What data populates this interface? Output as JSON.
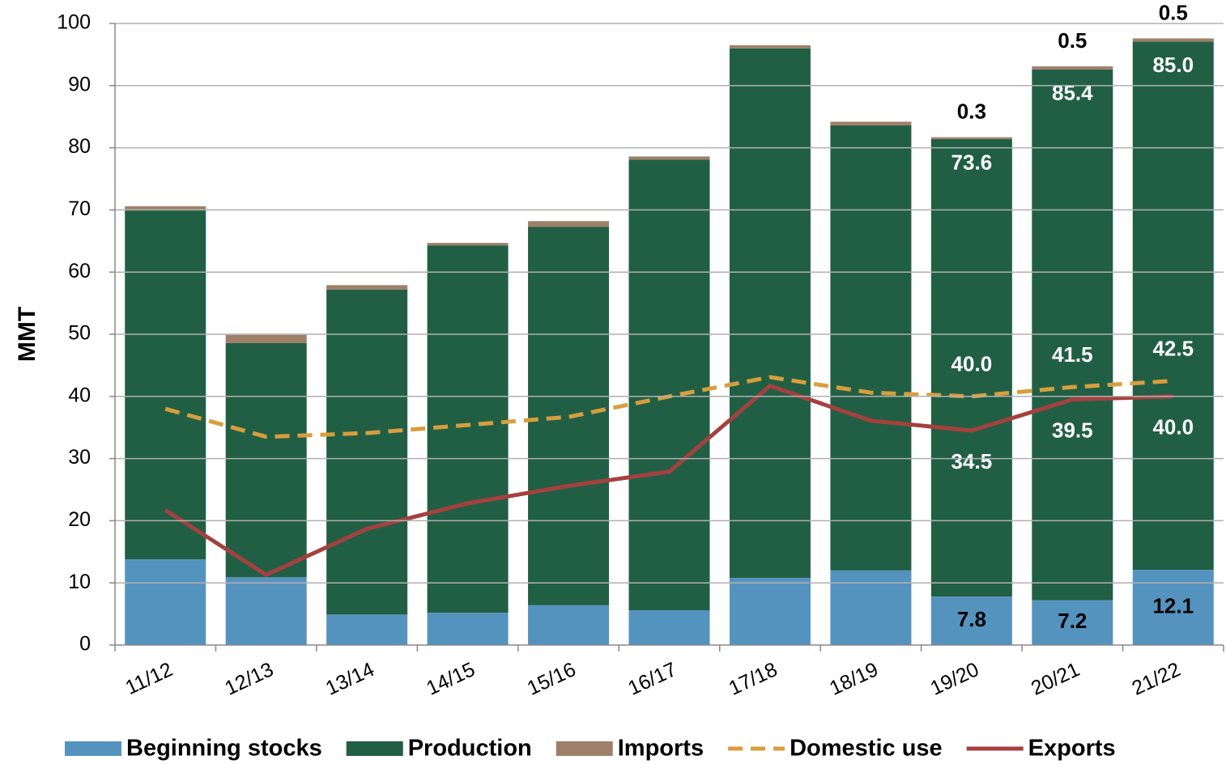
{
  "chart_data": {
    "type": "bar",
    "stacked": true,
    "ylabel": "MMT",
    "categories": [
      "11/12",
      "12/13",
      "13/14",
      "14/15",
      "15/16",
      "16/17",
      "17/18",
      "18/19",
      "19/20",
      "20/21",
      "21/22"
    ],
    "ylim": [
      0,
      100
    ],
    "yticks": [
      0,
      10,
      20,
      30,
      40,
      50,
      60,
      70,
      80,
      90,
      100
    ],
    "grid": true,
    "legend": "bottom",
    "series": [
      {
        "name": "Beginning stocks",
        "type": "bar",
        "color": "#5593bf",
        "label_color": "#000000",
        "values": [
          13.8,
          10.9,
          4.9,
          5.2,
          6.4,
          5.6,
          10.8,
          12.0,
          7.8,
          7.2,
          12.1
        ],
        "value_labels": [
          null,
          null,
          null,
          null,
          null,
          null,
          null,
          null,
          "7.8",
          "7.2",
          "12.1"
        ]
      },
      {
        "name": "Production",
        "type": "bar",
        "color": "#215f45",
        "label_color": "#ffffff",
        "values": [
          56.2,
          37.7,
          52.3,
          59.1,
          60.9,
          72.5,
          85.2,
          71.6,
          73.6,
          85.4,
          85.0
        ],
        "value_labels": [
          null,
          null,
          null,
          null,
          null,
          null,
          null,
          null,
          "73.6",
          "85.4",
          "85.0"
        ]
      },
      {
        "name": "Imports",
        "type": "bar",
        "color": "#a07f6a",
        "label_color": "#000000",
        "values": [
          0.6,
          1.3,
          0.7,
          0.4,
          0.9,
          0.5,
          0.5,
          0.6,
          0.3,
          0.5,
          0.5
        ],
        "value_labels": [
          null,
          null,
          null,
          null,
          null,
          null,
          null,
          null,
          "0.3",
          "0.5",
          "0.5"
        ]
      },
      {
        "name": "Domestic use",
        "type": "line",
        "dashed": true,
        "color": "#d89e3d",
        "label_color": "#ffffff",
        "values": [
          38.0,
          33.5,
          34.1,
          35.4,
          36.7,
          40.0,
          43.1,
          40.6,
          40.0,
          41.5,
          42.5
        ],
        "value_labels": [
          null,
          null,
          null,
          null,
          null,
          null,
          null,
          null,
          "40.0",
          "41.5",
          "42.5"
        ]
      },
      {
        "name": "Exports",
        "type": "line",
        "dashed": false,
        "color": "#a5403f",
        "label_color": "#ffffff",
        "values": [
          21.7,
          11.3,
          18.7,
          22.8,
          25.6,
          27.9,
          41.7,
          36.1,
          34.5,
          39.5,
          40.0
        ],
        "value_labels": [
          null,
          null,
          null,
          null,
          null,
          null,
          null,
          null,
          "34.5",
          "39.5",
          "40.0"
        ]
      }
    ]
  }
}
